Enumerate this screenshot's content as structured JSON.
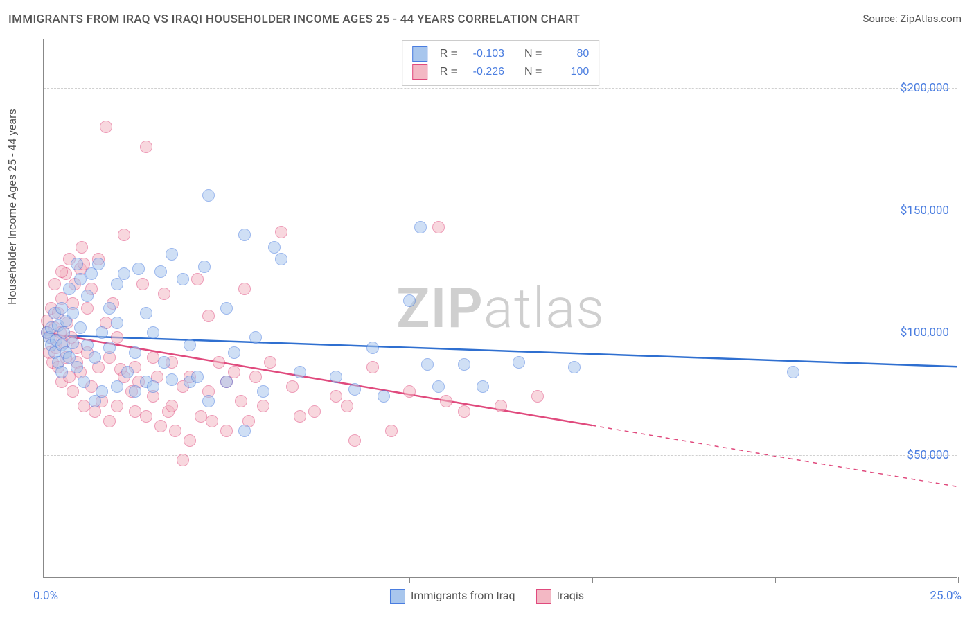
{
  "title": "IMMIGRANTS FROM IRAQ VS IRAQI HOUSEHOLDER INCOME AGES 25 - 44 YEARS CORRELATION CHART",
  "source_label": "Source: ZipAtlas.com",
  "y_axis_label": "Householder Income Ages 25 - 44 years",
  "watermark_a": "ZIP",
  "watermark_b": "atlas",
  "chart": {
    "type": "scatter",
    "background_color": "#ffffff",
    "grid_color": "#d0d0d0",
    "axis_color": "#888888",
    "text_color": "#555555",
    "value_color": "#4a7de0",
    "font_family": "Segoe UI, Arial, sans-serif",
    "title_fontsize": 17,
    "label_fontsize": 16,
    "tick_fontsize": 17,
    "marker_radius": 9,
    "xlim": [
      0,
      25
    ],
    "ylim": [
      0,
      220000
    ],
    "x_ticks": [
      0,
      5,
      10,
      15,
      20,
      25
    ],
    "x_tick_left_label": "0.0%",
    "x_tick_right_label": "25.0%",
    "y_ticks": [
      50000,
      100000,
      150000,
      200000
    ],
    "y_tick_labels": [
      "$50,000",
      "$100,000",
      "$150,000",
      "$200,000"
    ],
    "series": [
      {
        "key": "blue",
        "name": "Immigrants from Iraq",
        "fill_color": "#a8c6ed",
        "fill_opacity": 0.55,
        "stroke_color": "#4a7de0",
        "r": -0.103,
        "n": 80,
        "trend": {
          "x1": 0,
          "y1": 99000,
          "x2": 25,
          "y2": 86000,
          "color": "#2f6fd0",
          "width": 2.5,
          "dash_after_x": 25
        },
        "points": [
          [
            0.1,
            100000
          ],
          [
            0.15,
            98000
          ],
          [
            0.2,
            102000
          ],
          [
            0.2,
            95000
          ],
          [
            0.3,
            108000
          ],
          [
            0.3,
            92000
          ],
          [
            0.35,
            97000
          ],
          [
            0.4,
            103000
          ],
          [
            0.4,
            88000
          ],
          [
            0.5,
            110000
          ],
          [
            0.5,
            95000
          ],
          [
            0.55,
            100000
          ],
          [
            0.6,
            92000
          ],
          [
            0.6,
            105000
          ],
          [
            0.7,
            118000
          ],
          [
            0.7,
            90000
          ],
          [
            0.8,
            96000
          ],
          [
            0.8,
            108000
          ],
          [
            0.9,
            86000
          ],
          [
            1.0,
            122000
          ],
          [
            1.0,
            102000
          ],
          [
            1.1,
            80000
          ],
          [
            1.2,
            95000
          ],
          [
            1.2,
            115000
          ],
          [
            1.3,
            124000
          ],
          [
            1.4,
            90000
          ],
          [
            1.4,
            72000
          ],
          [
            1.5,
            128000
          ],
          [
            1.6,
            100000
          ],
          [
            1.6,
            76000
          ],
          [
            1.8,
            110000
          ],
          [
            1.8,
            94000
          ],
          [
            2.0,
            120000
          ],
          [
            2.0,
            78000
          ],
          [
            2.0,
            104000
          ],
          [
            2.2,
            124000
          ],
          [
            2.3,
            84000
          ],
          [
            2.5,
            92000
          ],
          [
            2.5,
            76000
          ],
          [
            2.6,
            126000
          ],
          [
            2.8,
            80000
          ],
          [
            2.8,
            108000
          ],
          [
            3.0,
            100000
          ],
          [
            3.0,
            78000
          ],
          [
            3.2,
            125000
          ],
          [
            3.3,
            88000
          ],
          [
            3.5,
            132000
          ],
          [
            3.5,
            81000
          ],
          [
            3.8,
            122000
          ],
          [
            4.0,
            80000
          ],
          [
            4.0,
            95000
          ],
          [
            4.2,
            82000
          ],
          [
            4.4,
            127000
          ],
          [
            4.5,
            72000
          ],
          [
            4.5,
            156000
          ],
          [
            5.0,
            110000
          ],
          [
            5.0,
            80000
          ],
          [
            5.2,
            92000
          ],
          [
            5.5,
            140000
          ],
          [
            5.5,
            60000
          ],
          [
            5.8,
            98000
          ],
          [
            6.0,
            76000
          ],
          [
            6.3,
            135000
          ],
          [
            6.5,
            130000
          ],
          [
            7.0,
            84000
          ],
          [
            8.0,
            82000
          ],
          [
            8.5,
            77000
          ],
          [
            9.0,
            94000
          ],
          [
            9.3,
            74000
          ],
          [
            10.0,
            113000
          ],
          [
            10.3,
            143000
          ],
          [
            10.5,
            87000
          ],
          [
            10.8,
            78000
          ],
          [
            11.5,
            87000
          ],
          [
            12.0,
            78000
          ],
          [
            13.0,
            88000
          ],
          [
            14.5,
            86000
          ],
          [
            20.5,
            84000
          ],
          [
            0.9,
            128000
          ],
          [
            0.5,
            84000
          ]
        ]
      },
      {
        "key": "pink",
        "name": "Iraqis",
        "fill_color": "#f3b8c4",
        "fill_opacity": 0.55,
        "stroke_color": "#e04a7d",
        "r": -0.226,
        "n": 100,
        "trend": {
          "x1": 0,
          "y1": 100000,
          "x2": 15,
          "y2": 62000,
          "color": "#e04a7d",
          "width": 2.5,
          "dash_after_x": 15,
          "dash_x2": 25,
          "dash_y2": 37000
        },
        "points": [
          [
            0.1,
            100000
          ],
          [
            0.1,
            105000
          ],
          [
            0.15,
            92000
          ],
          [
            0.2,
            98000
          ],
          [
            0.2,
            110000
          ],
          [
            0.25,
            88000
          ],
          [
            0.3,
            102000
          ],
          [
            0.3,
            120000
          ],
          [
            0.35,
            94000
          ],
          [
            0.4,
            108000
          ],
          [
            0.4,
            86000
          ],
          [
            0.45,
            100000
          ],
          [
            0.5,
            114000
          ],
          [
            0.5,
            80000
          ],
          [
            0.55,
            96000
          ],
          [
            0.6,
            124000
          ],
          [
            0.6,
            90000
          ],
          [
            0.65,
            104000
          ],
          [
            0.7,
            82000
          ],
          [
            0.7,
            130000
          ],
          [
            0.75,
            98000
          ],
          [
            0.8,
            112000
          ],
          [
            0.8,
            76000
          ],
          [
            0.85,
            120000
          ],
          [
            0.9,
            88000
          ],
          [
            0.9,
            94000
          ],
          [
            1.0,
            126000
          ],
          [
            1.0,
            84000
          ],
          [
            1.05,
            135000
          ],
          [
            1.1,
            70000
          ],
          [
            1.1,
            128000
          ],
          [
            1.2,
            92000
          ],
          [
            1.2,
            110000
          ],
          [
            1.3,
            78000
          ],
          [
            1.3,
            118000
          ],
          [
            1.4,
            68000
          ],
          [
            1.5,
            130000
          ],
          [
            1.5,
            86000
          ],
          [
            1.6,
            72000
          ],
          [
            1.7,
            104000
          ],
          [
            1.7,
            184000
          ],
          [
            1.8,
            90000
          ],
          [
            1.8,
            64000
          ],
          [
            1.9,
            112000
          ],
          [
            2.0,
            70000
          ],
          [
            2.0,
            98000
          ],
          [
            2.1,
            85000
          ],
          [
            2.2,
            82000
          ],
          [
            2.2,
            140000
          ],
          [
            2.4,
            76000
          ],
          [
            2.5,
            86000
          ],
          [
            2.5,
            68000
          ],
          [
            2.6,
            80000
          ],
          [
            2.7,
            120000
          ],
          [
            2.8,
            66000
          ],
          [
            2.8,
            176000
          ],
          [
            3.0,
            90000
          ],
          [
            3.0,
            74000
          ],
          [
            3.1,
            82000
          ],
          [
            3.2,
            62000
          ],
          [
            3.3,
            116000
          ],
          [
            3.4,
            68000
          ],
          [
            3.5,
            70000
          ],
          [
            3.5,
            88000
          ],
          [
            3.6,
            60000
          ],
          [
            3.8,
            48000
          ],
          [
            3.8,
            78000
          ],
          [
            4.0,
            82000
          ],
          [
            4.0,
            56000
          ],
          [
            4.2,
            122000
          ],
          [
            4.3,
            66000
          ],
          [
            4.5,
            76000
          ],
          [
            4.5,
            107000
          ],
          [
            4.6,
            64000
          ],
          [
            4.8,
            88000
          ],
          [
            5.0,
            80000
          ],
          [
            5.0,
            60000
          ],
          [
            5.2,
            84000
          ],
          [
            5.4,
            72000
          ],
          [
            5.5,
            118000
          ],
          [
            5.6,
            64000
          ],
          [
            5.8,
            82000
          ],
          [
            6.0,
            70000
          ],
          [
            6.2,
            88000
          ],
          [
            6.5,
            141000
          ],
          [
            6.8,
            78000
          ],
          [
            7.0,
            66000
          ],
          [
            7.4,
            68000
          ],
          [
            8.0,
            74000
          ],
          [
            8.3,
            70000
          ],
          [
            8.5,
            56000
          ],
          [
            9.0,
            86000
          ],
          [
            9.5,
            60000
          ],
          [
            10.0,
            76000
          ],
          [
            10.8,
            143000
          ],
          [
            11.0,
            72000
          ],
          [
            11.5,
            68000
          ],
          [
            12.5,
            70000
          ],
          [
            13.5,
            74000
          ],
          [
            0.5,
            125000
          ]
        ]
      }
    ],
    "top_legend": {
      "r_label": "R =",
      "n_label": "N ="
    },
    "bottom_legend": {
      "items": [
        "Immigrants from Iraq",
        "Iraqis"
      ]
    }
  }
}
